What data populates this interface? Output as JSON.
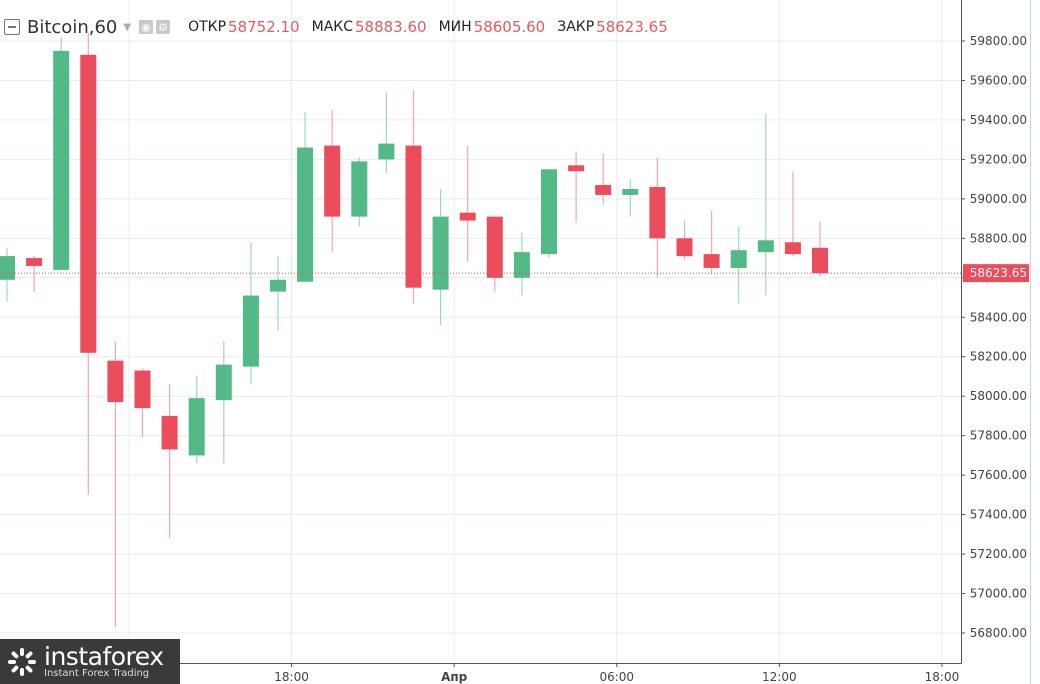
{
  "legend": {
    "symbol": "Bitcoin",
    "interval": "60",
    "open_label": "ОТКР",
    "open_value": "58752.10",
    "high_label": "МАКС",
    "high_value": "58883.60",
    "low_label": "МИН",
    "low_value": "58605.60",
    "close_label": "ЗАКР",
    "close_value": "58623.65"
  },
  "logo": {
    "name": "instaforex",
    "tagline": "Instant Forex Trading"
  },
  "colors": {
    "up": "#53b987",
    "down": "#eb4d5c",
    "grid": "#e6eef2",
    "price_line": "#eb4d5c"
  },
  "chart_data": {
    "type": "candlestick",
    "ylim": [
      56700,
      60000
    ],
    "y_ticks": [
      "56800.00",
      "57000.00",
      "57200.00",
      "57400.00",
      "57600.00",
      "57800.00",
      "58000.00",
      "58200.00",
      "58400.00",
      "58600.00",
      "58800.00",
      "59000.00",
      "59200.00",
      "59400.00",
      "59600.00",
      "59800.00"
    ],
    "x_tick_labels": [
      {
        "label": "12:00",
        "index": 4.5
      },
      {
        "label": "18:00",
        "index": 10.5
      },
      {
        "label": "Апр",
        "index": 16.5
      },
      {
        "label": "06:00",
        "index": 22.5
      },
      {
        "label": "12:00",
        "index": 28.5
      },
      {
        "label": "18:00",
        "index": 34.5
      }
    ],
    "current_price": "58623.65",
    "candles": [
      {
        "o": 58590,
        "h": 58750,
        "l": 58480,
        "c": 58710
      },
      {
        "o": 58700,
        "h": 58710,
        "l": 58530,
        "c": 58660
      },
      {
        "o": 58640,
        "h": 59820,
        "l": 58640,
        "c": 59750
      },
      {
        "o": 59730,
        "h": 59840,
        "l": 57500,
        "c": 58220
      },
      {
        "o": 58180,
        "h": 58280,
        "l": 56830,
        "c": 57970
      },
      {
        "o": 58130,
        "h": 58140,
        "l": 57790,
        "c": 57940
      },
      {
        "o": 57900,
        "h": 58060,
        "l": 57280,
        "c": 57730
      },
      {
        "o": 57700,
        "h": 58100,
        "l": 57660,
        "c": 57990
      },
      {
        "o": 57980,
        "h": 58280,
        "l": 57660,
        "c": 58160
      },
      {
        "o": 58150,
        "h": 58780,
        "l": 58060,
        "c": 58510
      },
      {
        "o": 58530,
        "h": 58710,
        "l": 58330,
        "c": 58590
      },
      {
        "o": 58580,
        "h": 59440,
        "l": 58580,
        "c": 59260
      },
      {
        "o": 59270,
        "h": 59450,
        "l": 58730,
        "c": 58910
      },
      {
        "o": 58910,
        "h": 59210,
        "l": 58860,
        "c": 59190
      },
      {
        "o": 59200,
        "h": 59540,
        "l": 59130,
        "c": 59280
      },
      {
        "o": 59270,
        "h": 59550,
        "l": 58470,
        "c": 58550
      },
      {
        "o": 58540,
        "h": 59050,
        "l": 58360,
        "c": 58910
      },
      {
        "o": 58930,
        "h": 59270,
        "l": 58680,
        "c": 58890
      },
      {
        "o": 58910,
        "h": 58910,
        "l": 58530,
        "c": 58600
      },
      {
        "o": 58600,
        "h": 58830,
        "l": 58510,
        "c": 58730
      },
      {
        "o": 58720,
        "h": 59150,
        "l": 58700,
        "c": 59150
      },
      {
        "o": 59170,
        "h": 59240,
        "l": 58880,
        "c": 59140
      },
      {
        "o": 59070,
        "h": 59230,
        "l": 58970,
        "c": 59020
      },
      {
        "o": 59020,
        "h": 59100,
        "l": 58910,
        "c": 59050
      },
      {
        "o": 59060,
        "h": 59210,
        "l": 58600,
        "c": 58800
      },
      {
        "o": 58800,
        "h": 58890,
        "l": 58690,
        "c": 58710
      },
      {
        "o": 58720,
        "h": 58940,
        "l": 58620,
        "c": 58650
      },
      {
        "o": 58650,
        "h": 58860,
        "l": 58470,
        "c": 58740
      },
      {
        "o": 58730,
        "h": 59430,
        "l": 58510,
        "c": 58790
      },
      {
        "o": 58780,
        "h": 59140,
        "l": 58710,
        "c": 58720
      },
      {
        "o": 58752.1,
        "h": 58883.6,
        "l": 58605.6,
        "c": 58623.65
      }
    ]
  }
}
